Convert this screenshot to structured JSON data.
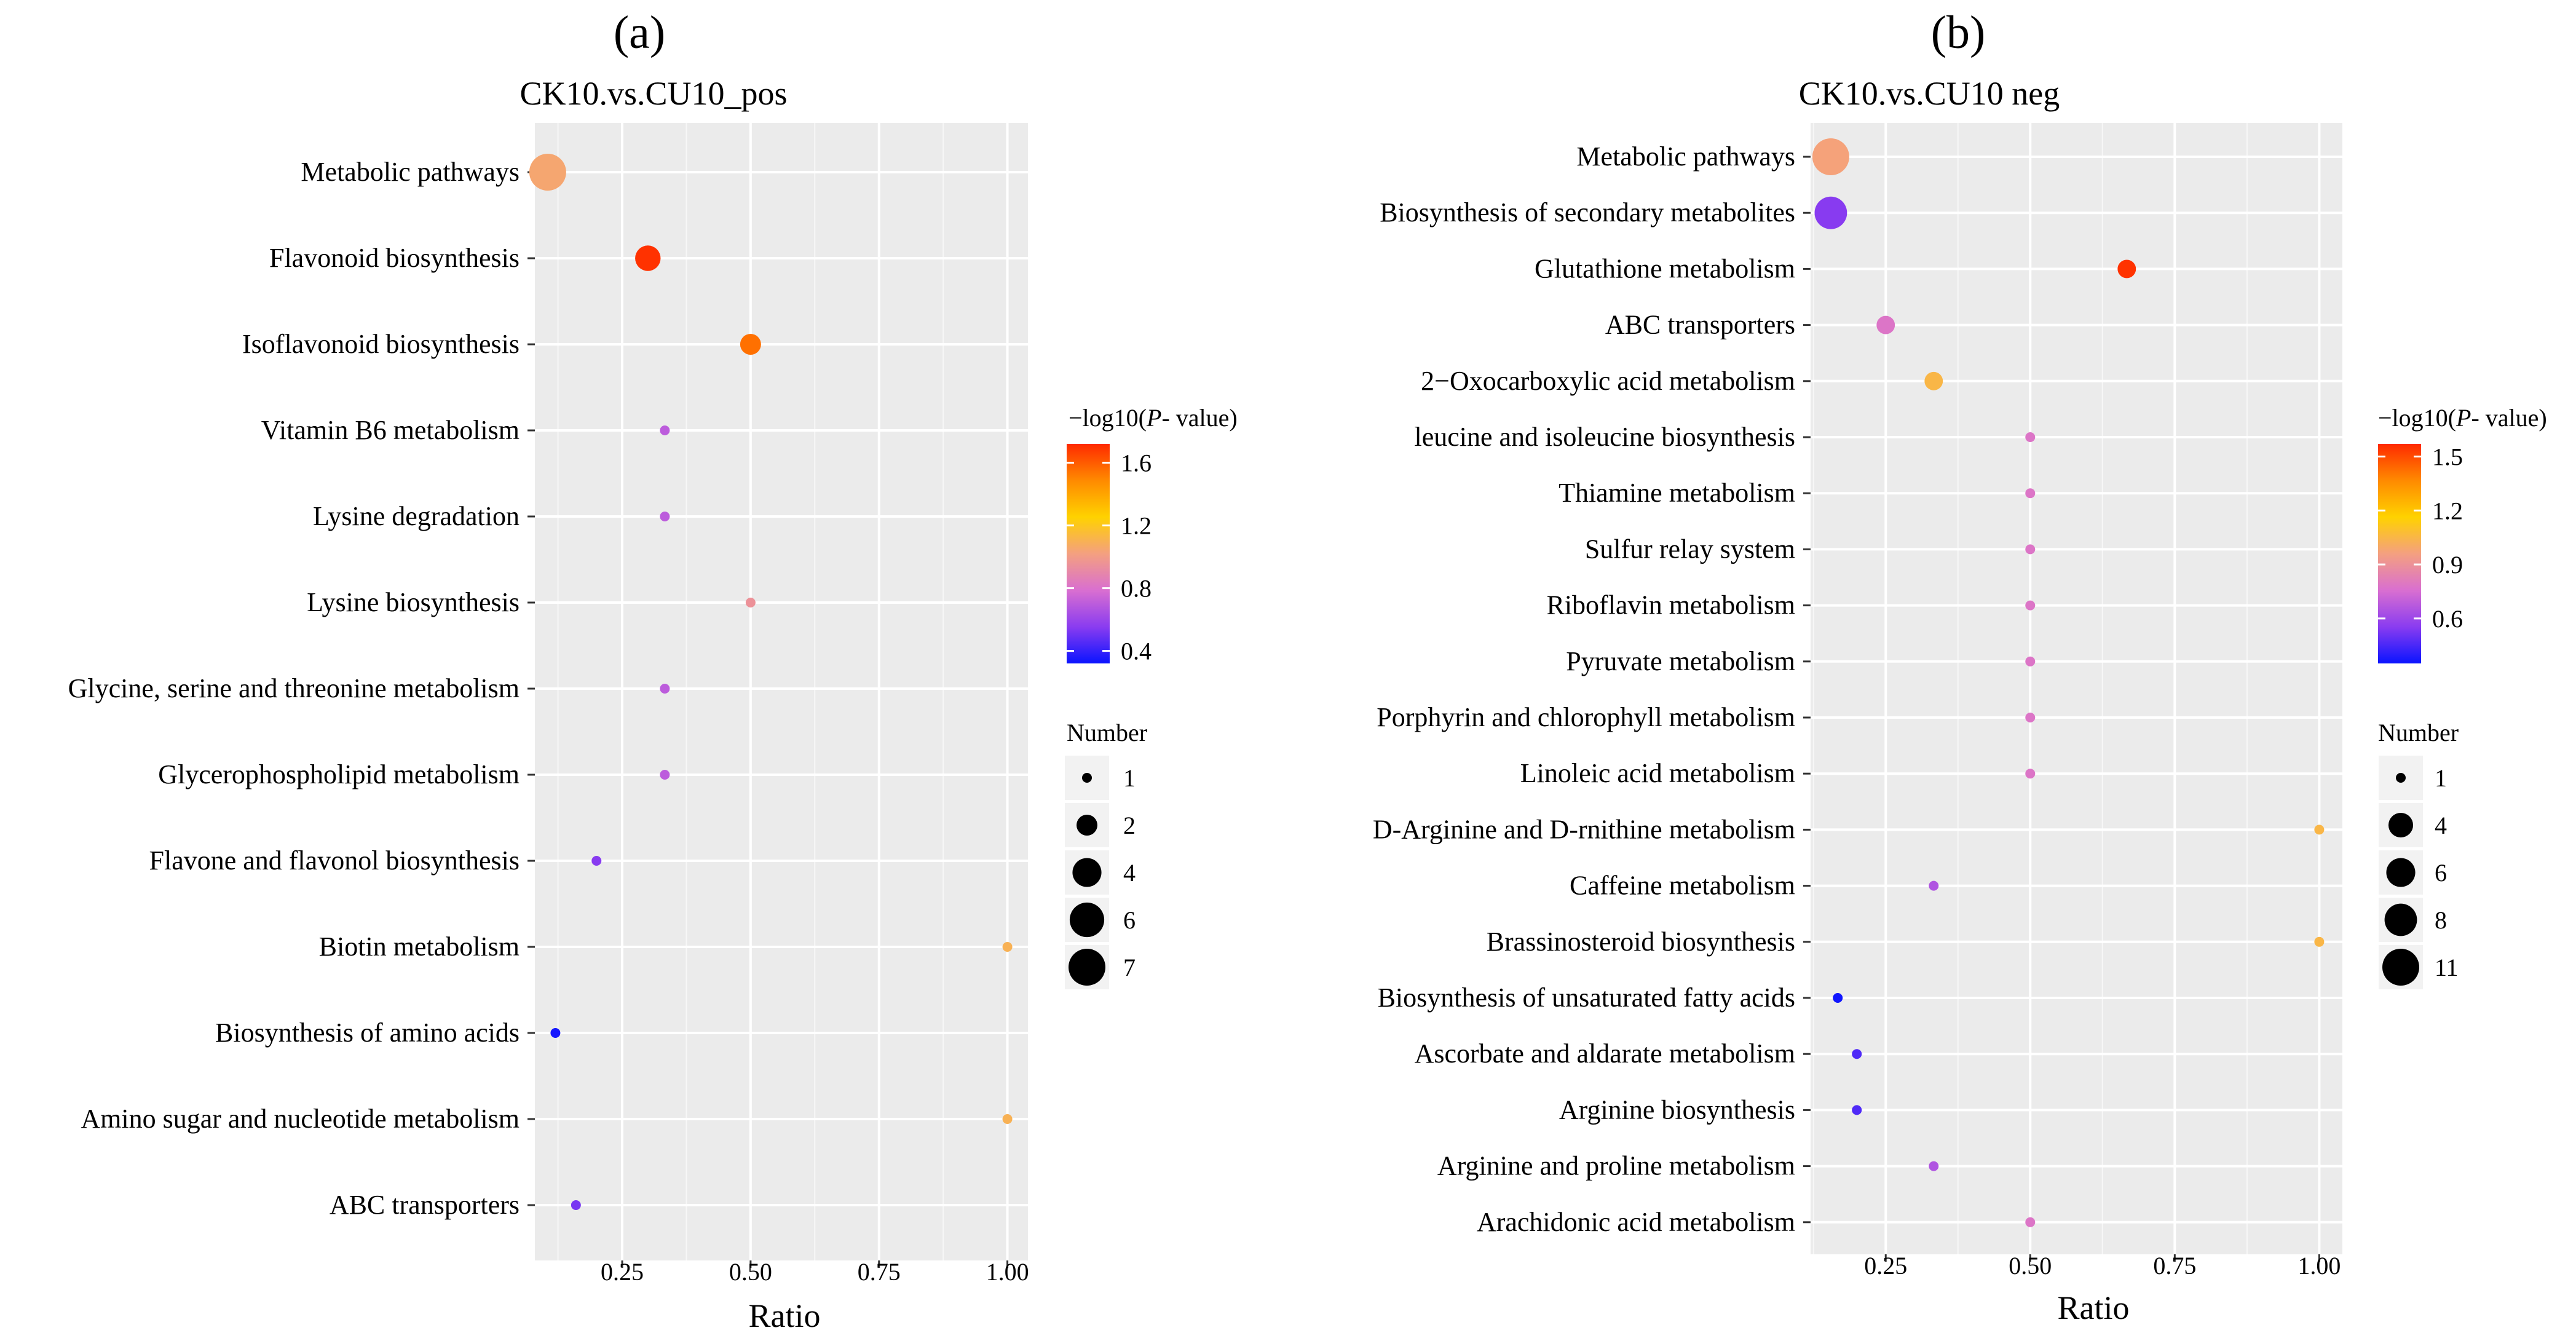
{
  "chart_data": [
    {
      "panel_label": "(a)",
      "type": "scatter",
      "title": "CK10.vs.CU10_pos",
      "xlabel": "Ratio",
      "ylabel": "",
      "xlim": [
        0.08,
        1.04
      ],
      "x_ticks": [
        0.25,
        0.5,
        0.75,
        1.0
      ],
      "x_tick_labels": [
        "0.25",
        "0.50",
        "0.75",
        "1.00"
      ],
      "grid": true,
      "legend_color_title": "−log10(",
      "legend_color_title_italic": "P",
      "legend_color_title_suffix": "- value)",
      "color_scale": {
        "min": 0.32,
        "max": 1.72,
        "ticks": [
          0.4,
          0.8,
          1.2,
          1.6
        ],
        "tick_labels": [
          "0.4",
          "0.8",
          "1.2",
          "1.6"
        ],
        "colors": [
          "#0a14ff",
          "#8a3cf0",
          "#d96fd0",
          "#f4a080",
          "#ffd200",
          "#ff8a00",
          "#ff2a00"
        ]
      },
      "legend_size_title": "Number",
      "size_legend": [
        {
          "label": "1",
          "value": 1
        },
        {
          "label": "2",
          "value": 2
        },
        {
          "label": "4",
          "value": 4
        },
        {
          "label": "6",
          "value": 6
        },
        {
          "label": "7",
          "value": 7
        }
      ],
      "size_max": 7,
      "pathways": [
        {
          "name": "Metabolic pathways",
          "ratio": 0.105,
          "number": 7,
          "logp": 1.05
        },
        {
          "name": "Flavonoid biosynthesis",
          "ratio": 0.3,
          "number": 3,
          "logp": 1.7
        },
        {
          "name": "Isoflavonoid biosynthesis",
          "ratio": 0.5,
          "number": 2,
          "logp": 1.55
        },
        {
          "name": "Vitamin B6 metabolism",
          "ratio": 0.333,
          "number": 1,
          "logp": 0.7
        },
        {
          "name": "Lysine degradation",
          "ratio": 0.333,
          "number": 1,
          "logp": 0.7
        },
        {
          "name": "Lysine biosynthesis",
          "ratio": 0.5,
          "number": 1,
          "logp": 0.95
        },
        {
          "name": "Glycine, serine and threonine metabolism",
          "ratio": 0.333,
          "number": 1,
          "logp": 0.7
        },
        {
          "name": "Glycerophospholipid metabolism",
          "ratio": 0.333,
          "number": 1,
          "logp": 0.7
        },
        {
          "name": "Flavone and flavonol biosynthesis",
          "ratio": 0.2,
          "number": 1,
          "logp": 0.55
        },
        {
          "name": "Biotin metabolism",
          "ratio": 1.0,
          "number": 1,
          "logp": 1.1
        },
        {
          "name": "Biosynthesis of amino acids",
          "ratio": 0.12,
          "number": 1,
          "logp": 0.34
        },
        {
          "name": "Amino sugar and nucleotide  metabolism",
          "ratio": 1.0,
          "number": 1,
          "logp": 1.1
        },
        {
          "name": "ABC transporters",
          "ratio": 0.16,
          "number": 1,
          "logp": 0.52
        }
      ]
    },
    {
      "panel_label": "(b)",
      "type": "scatter",
      "title": "CK10.vs.CU10 neg",
      "xlabel": "Ratio",
      "ylabel": "",
      "xlim": [
        0.12,
        1.04
      ],
      "x_ticks": [
        0.25,
        0.5,
        0.75,
        1.0
      ],
      "x_tick_labels": [
        "0.25",
        "0.50",
        "0.75",
        "1.00"
      ],
      "grid": true,
      "legend_color_title": "−log10(",
      "legend_color_title_italic": "P",
      "legend_color_title_suffix": "- value)",
      "color_scale": {
        "min": 0.35,
        "max": 1.57,
        "ticks": [
          0.6,
          0.9,
          1.2,
          1.5
        ],
        "tick_labels": [
          "0.6",
          "0.9",
          "1.2",
          "1.5"
        ],
        "colors": [
          "#0a14ff",
          "#8a3cf0",
          "#d96fd0",
          "#f4a080",
          "#ffd200",
          "#ff8a00",
          "#ff2a00"
        ]
      },
      "legend_size_title": "Number",
      "size_legend": [
        {
          "label": "1",
          "value": 1
        },
        {
          "label": "4",
          "value": 4
        },
        {
          "label": "6",
          "value": 6
        },
        {
          "label": "8",
          "value": 8
        },
        {
          "label": "11",
          "value": 11
        }
      ],
      "size_max": 11,
      "pathways": [
        {
          "name": "Metabolic pathways",
          "ratio": 0.155,
          "number": 11,
          "logp": 0.97
        },
        {
          "name": "Biosynthesis of secondary metabolites",
          "ratio": 0.155,
          "number": 8,
          "logp": 0.55
        },
        {
          "name": "Glutathione metabolism",
          "ratio": 0.667,
          "number": 2,
          "logp": 1.55
        },
        {
          "name": "ABC transporters",
          "ratio": 0.25,
          "number": 2,
          "logp": 0.78
        },
        {
          "name": "2−Oxocarboxylic acid metabolism",
          "ratio": 0.333,
          "number": 2,
          "logp": 1.05
        },
        {
          "name": "leucine and isoleucine biosynthesis",
          "ratio": 0.5,
          "number": 1,
          "logp": 0.78
        },
        {
          "name": "Thiamine metabolism",
          "ratio": 0.5,
          "number": 1,
          "logp": 0.78
        },
        {
          "name": "Sulfur relay system",
          "ratio": 0.5,
          "number": 1,
          "logp": 0.78
        },
        {
          "name": "Riboflavin metabolism",
          "ratio": 0.5,
          "number": 1,
          "logp": 0.78
        },
        {
          "name": "Pyruvate metabolism",
          "ratio": 0.5,
          "number": 1,
          "logp": 0.78
        },
        {
          "name": "Porphyrin and chlorophyll metabolism",
          "ratio": 0.5,
          "number": 1,
          "logp": 0.78
        },
        {
          "name": "Linoleic acid metabolism",
          "ratio": 0.5,
          "number": 1,
          "logp": 0.78
        },
        {
          "name": "D-Arginine and D-rnithine metabolism",
          "ratio": 1.0,
          "number": 1,
          "logp": 1.05
        },
        {
          "name": "Caffeine metabolism",
          "ratio": 0.333,
          "number": 1,
          "logp": 0.65
        },
        {
          "name": "Brassinosteroid biosynthesis",
          "ratio": 1.0,
          "number": 1,
          "logp": 1.05
        },
        {
          "name": "Biosynthesis of unsaturated fatty acids",
          "ratio": 0.167,
          "number": 1,
          "logp": 0.36
        },
        {
          "name": "Ascorbate and aldarate metabolism",
          "ratio": 0.2,
          "number": 1,
          "logp": 0.46
        },
        {
          "name": "Arginine biosynthesis",
          "ratio": 0.2,
          "number": 1,
          "logp": 0.46
        },
        {
          "name": "Arginine and proline metabolism",
          "ratio": 0.333,
          "number": 1,
          "logp": 0.65
        },
        {
          "name": "Arachidonic acid metabolism",
          "ratio": 0.5,
          "number": 1,
          "logp": 0.78
        }
      ]
    }
  ]
}
